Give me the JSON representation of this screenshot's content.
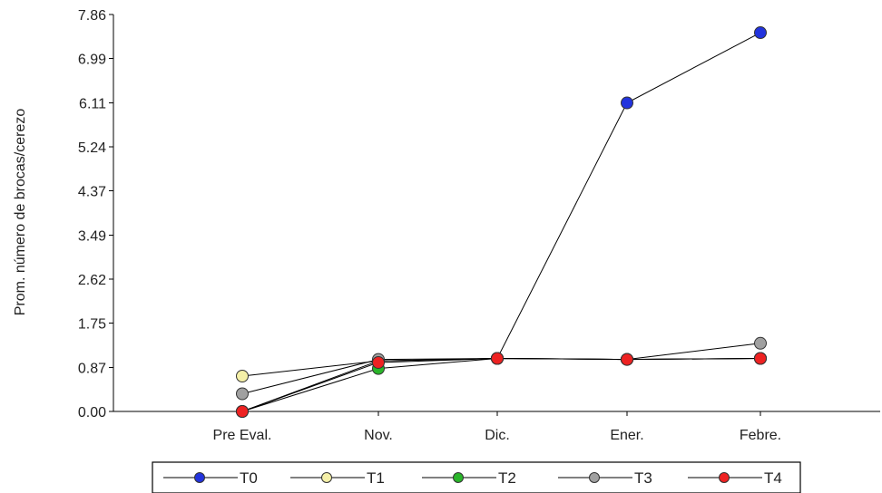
{
  "chart_data": {
    "type": "line",
    "title": "",
    "xlabel": "",
    "ylabel": "Prom. número de brocas/cerezo",
    "categories": [
      "Pre Eval.",
      "Nov.",
      "Dic.",
      "Ener.",
      "Febre."
    ],
    "y_ticks": [
      "0.00",
      "0.87",
      "1.75",
      "2.62",
      "3.49",
      "4.37",
      "5.24",
      "6.11",
      "6.99",
      "7.86"
    ],
    "ylim": [
      0,
      7.86
    ],
    "grid": false,
    "legend_position": "bottom",
    "series": [
      {
        "name": "T0",
        "color": "#2233dd",
        "values": [
          0.0,
          1.0,
          1.05,
          6.11,
          7.5
        ]
      },
      {
        "name": "T1",
        "color": "#f5f0a8",
        "values": [
          0.7,
          1.0,
          1.05,
          1.03,
          1.05
        ]
      },
      {
        "name": "T2",
        "color": "#2ab52a",
        "values": [
          0.0,
          0.85,
          1.05,
          1.03,
          1.05
        ]
      },
      {
        "name": "T3",
        "color": "#a0a0a0",
        "values": [
          0.35,
          1.03,
          1.05,
          1.03,
          1.35
        ]
      },
      {
        "name": "T4",
        "color": "#ee2222",
        "values": [
          0.0,
          0.97,
          1.05,
          1.03,
          1.05
        ]
      }
    ]
  }
}
